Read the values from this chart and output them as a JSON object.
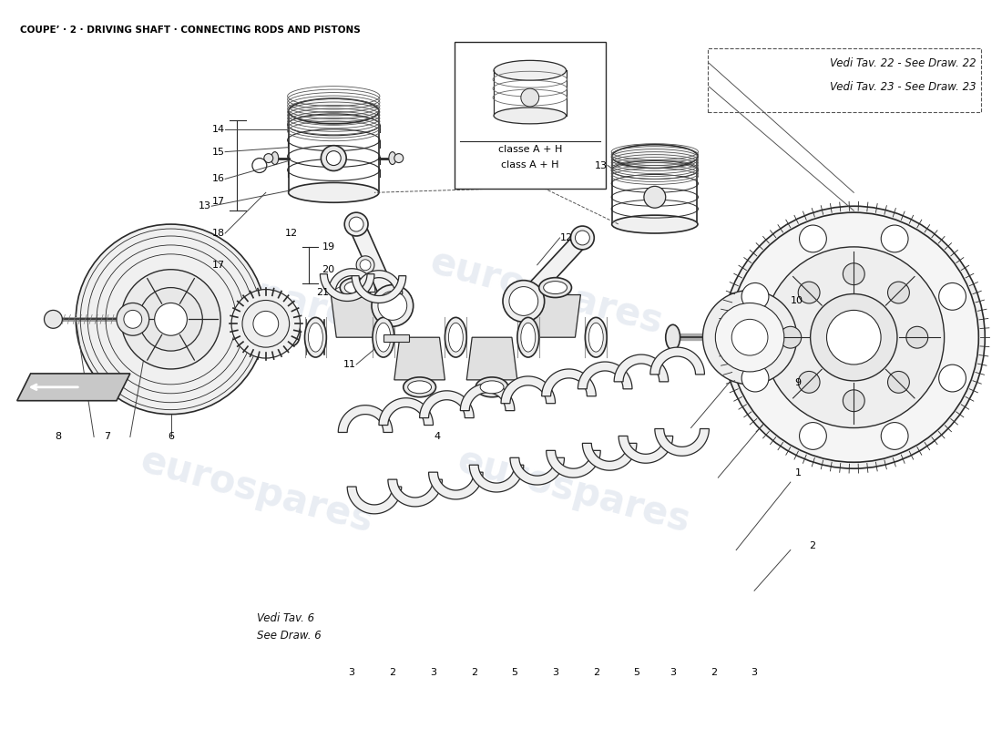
{
  "title": "COUPE’ · 2 · DRIVING SHAFT · CONNECTING RODS AND PISTONS",
  "title_fontsize": 7.5,
  "bg_color": "#ffffff",
  "watermark_text": "eurospares",
  "watermark_color": "#c5d0e0",
  "watermark_alpha": 0.38,
  "fig_width": 11.0,
  "fig_height": 8.0,
  "dpi": 100,
  "ref_text1": "Vedi Tav. 22 - See Draw. 22",
  "ref_text2": "Vedi Tav. 23 - See Draw. 23",
  "ref_text3": "Vedi Tav. 6",
  "ref_text4": "See Draw. 6",
  "callout_text1": "classe A + H",
  "callout_text2": "class A + H"
}
